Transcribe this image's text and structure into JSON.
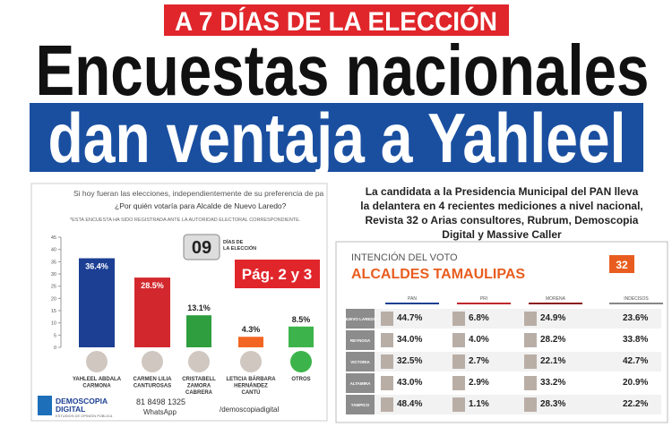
{
  "header": {
    "kicker": "A 7 DÍAS DE LA ELECCIÓN",
    "headline_1": "Encuestas nacionales",
    "headline_2": "dan ventaja a Yahleel"
  },
  "lede": [
    "La candidata a la Presidencia Municipal del PAN lleva",
    "la delantera en 4 recientes mediciones a nivel nacional,",
    "Revista 32 o Arias consultores, Rubrum, Demoscopia",
    "Digital y Massive Caller"
  ],
  "poll_chart": {
    "type": "bar",
    "intro": "Si hoy fueran las elecciones, independientemente de su preferencia de pa",
    "question": "¿Por quién votaría para Alcalde de Nuevo Laredo?",
    "note": "*ESTA ENCUESTA HA SIDO REGISTRADA ANTE LA AUTORIDAD ELECTORAL CORRESPONDIENTE.",
    "countdown": {
      "number": "09",
      "caption": [
        "DÍAS DE",
        "LA ELECCIÓN"
      ]
    },
    "page_ref": "Pág. 2 y 3",
    "categories": [
      [
        "YAHLEEL ABDALA",
        "CARMONA"
      ],
      [
        "CARMEN LILIA",
        "CANTUROSAS"
      ],
      [
        "CRISTABELL",
        "ZAMORA",
        "CABRERA"
      ],
      [
        "LETICIA BÁRBARA",
        "HERNÁNDEZ",
        "CANTÚ"
      ],
      [
        "OTROS"
      ]
    ],
    "values": [
      36.4,
      28.5,
      13.1,
      4.3,
      8.5
    ],
    "value_labels": [
      "36.4%",
      "28.5%",
      "13.1%",
      "4.3%",
      "8.5%"
    ],
    "colors": [
      "#1c3f94",
      "#d3272e",
      "#2e9e3e",
      "#f26522",
      "#3db44b"
    ],
    "ylim": [
      0,
      45
    ],
    "yticks": [
      0,
      5,
      10,
      15,
      20,
      25,
      30,
      35,
      40,
      45
    ],
    "footer": {
      "brand": [
        "DEMOSCOPIA",
        "DIGITAL"
      ],
      "tagline": "ESTUDIOS DE OPINIÓN PÚBLICA",
      "phone": "81 8498 1325",
      "phone_label": "WhatsApp",
      "social": "/demoscopiadigital"
    }
  },
  "table": {
    "title": "INTENCIÓN DEL VOTO",
    "subtitle": "ALCALDES TAMAULIPAS",
    "badge": "32",
    "columns": [
      "PAN",
      "PRI",
      "MORENA",
      "INDECISOS"
    ],
    "rows": [
      [
        "NUEVO LAREDO",
        "44.7%",
        "6.8%",
        "24.9%",
        "23.6%"
      ],
      [
        "REYNOSA",
        "34.0%",
        "4.0%",
        "28.2%",
        "33.8%"
      ],
      [
        "VICTORIA",
        "32.5%",
        "2.7%",
        "22.1%",
        "42.7%"
      ],
      [
        "ALTAMIRA",
        "43.0%",
        "2.9%",
        "33.2%",
        "20.9%"
      ],
      [
        "TAMPICO",
        "48.4%",
        "1.1%",
        "28.3%",
        "22.2%"
      ]
    ]
  }
}
